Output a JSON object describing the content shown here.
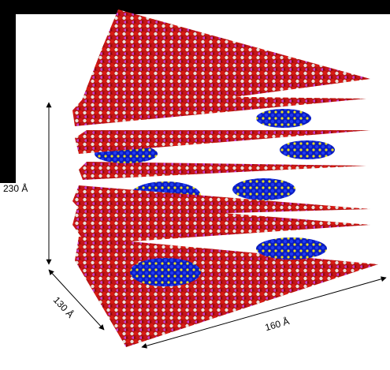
{
  "labels": {
    "height": "230 Å",
    "depth": "130 Å",
    "width": "160 Å"
  }
}
